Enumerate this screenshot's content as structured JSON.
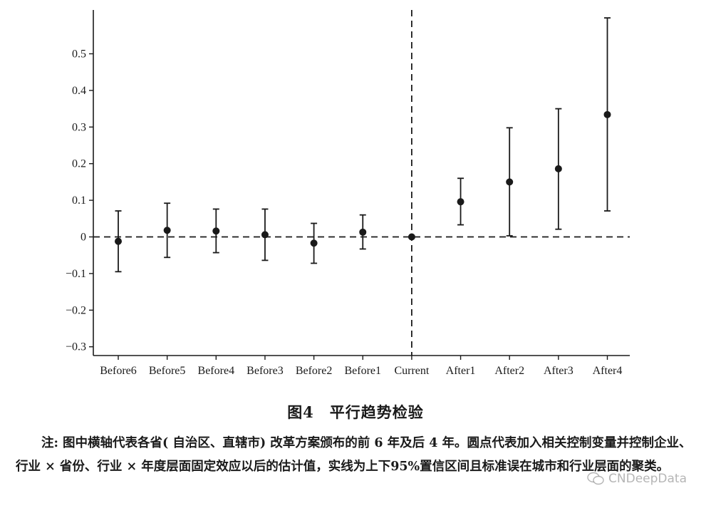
{
  "chart_data": {
    "type": "scatter",
    "subtype": "point-with-error-bars",
    "categories": [
      "Before6",
      "Before5",
      "Before4",
      "Before3",
      "Before2",
      "Before1",
      "Current",
      "After1",
      "After2",
      "After3",
      "After4"
    ],
    "series": [
      {
        "values": [
          -0.012,
          0.018,
          0.016,
          0.006,
          -0.017,
          0.013,
          0.0,
          0.096,
          0.15,
          0.186,
          0.334
        ],
        "lower": [
          -0.095,
          -0.056,
          -0.043,
          -0.064,
          -0.072,
          -0.033,
          0.0,
          0.033,
          0.003,
          0.021,
          0.071
        ],
        "upper": [
          0.071,
          0.092,
          0.076,
          0.076,
          0.037,
          0.06,
          0.0,
          0.16,
          0.298,
          0.35,
          0.598
        ]
      }
    ],
    "y_ticks": [
      {
        "v": 0.5,
        "label": "0.5"
      },
      {
        "v": 0.4,
        "label": "0.4"
      },
      {
        "v": 0.3,
        "label": "0.3"
      },
      {
        "v": 0.2,
        "label": "0.2"
      },
      {
        "v": 0.1,
        "label": "0.1"
      },
      {
        "v": 0,
        "label": "0"
      },
      {
        "v": -0.1,
        "label": "−0.1"
      },
      {
        "v": -0.2,
        "label": "−0.2"
      },
      {
        "v": -0.3,
        "label": "−0.3"
      }
    ],
    "ylim": [
      -0.33,
      0.62
    ],
    "reference_lines": {
      "horizontal_y": 0,
      "vertical_at_category": "Current",
      "style": "dashed"
    },
    "grid": false,
    "title": "",
    "xlabel": "",
    "ylabel": ""
  },
  "caption": "图4　平行趋势检验",
  "note": "注: 图中横轴代表各省( 自治区、直辖市) 改革方案颁布的前 6 年及后 4 年。圆点代表加入相关控制变量并控制企业、行业 × 省份、行业 × 年度层面固定效应以后的估计值，实线为上下95%置信区间且标准误在城市和行业层面的聚类。",
  "watermark": "CNDeepData",
  "colors": {
    "ink": "#1a1a1a"
  }
}
